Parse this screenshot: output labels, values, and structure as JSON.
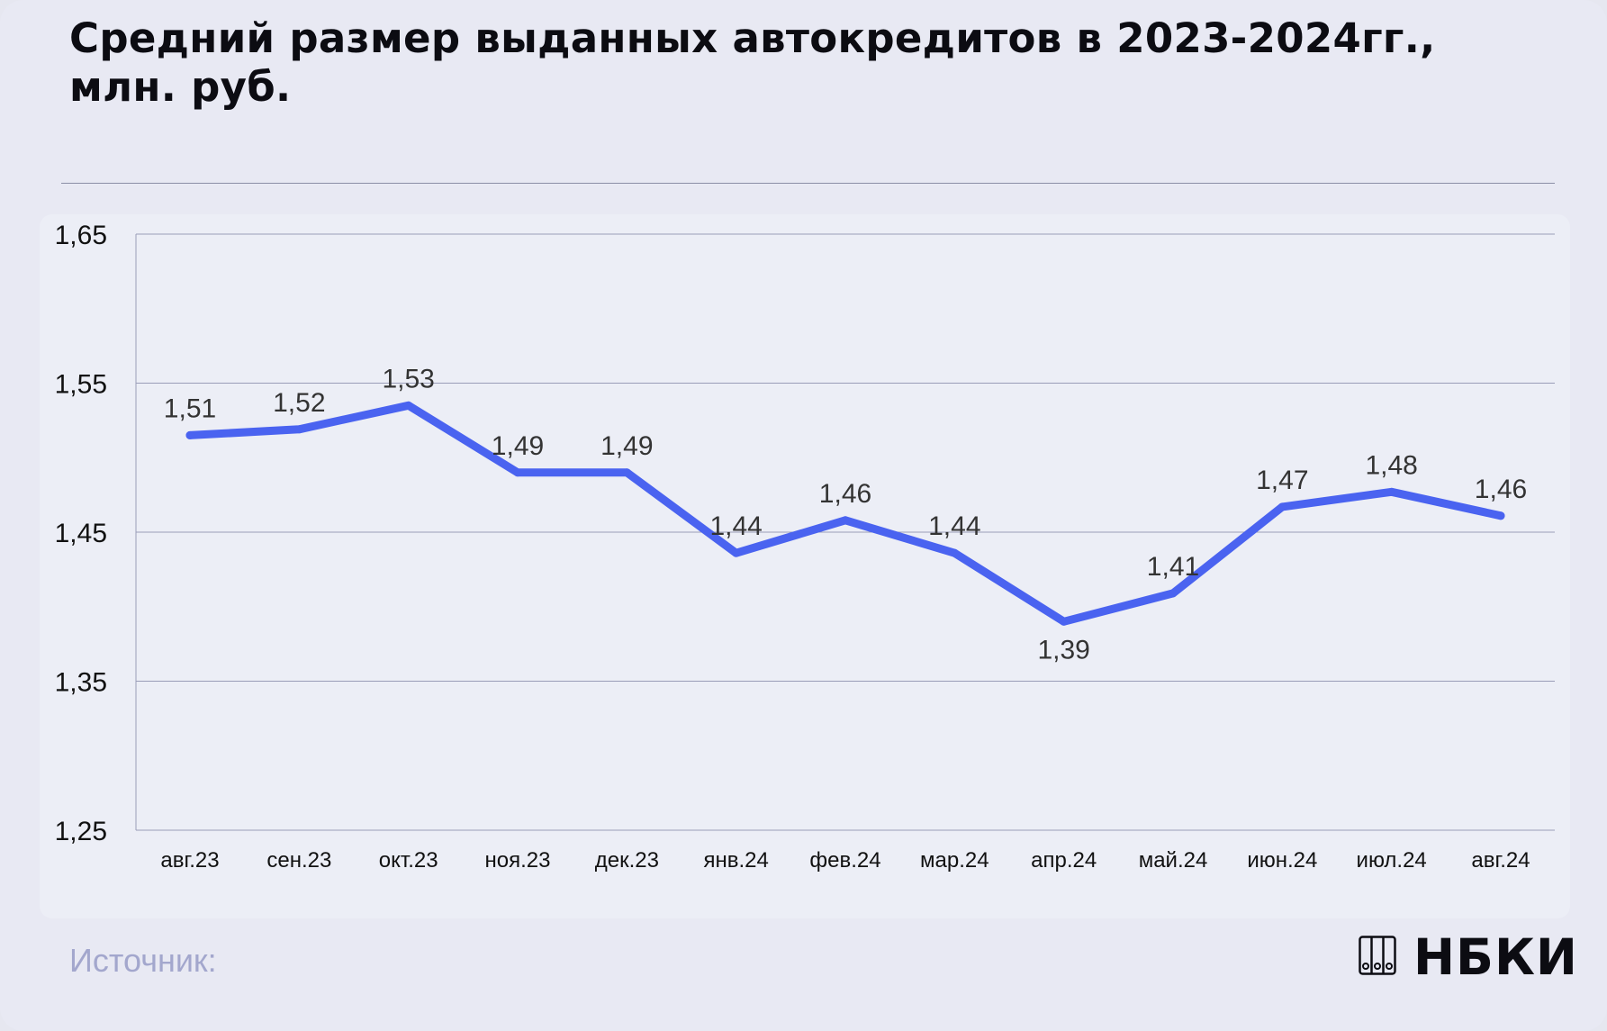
{
  "title": "Средний размер выданных автокредитов в 2023-2024гг., млн. руб.",
  "source_label": "Источник:",
  "logo_text": "НБКИ",
  "colors": {
    "line": "#4a63f0",
    "grid": "#9a9db8",
    "axis_text": "#111111",
    "label_text": "#333333",
    "source": "#a3a7cd"
  },
  "chart_data": {
    "type": "line",
    "categories": [
      "авг.23",
      "сен.23",
      "окт.23",
      "ноя.23",
      "дек.23",
      "янв.24",
      "фев.24",
      "мар.24",
      "апр.24",
      "май.24",
      "июн.24",
      "июл.24",
      "авг.24"
    ],
    "series": [
      {
        "values": [
          1.515,
          1.519,
          1.535,
          1.49,
          1.49,
          1.436,
          1.458,
          1.436,
          1.39,
          1.409,
          1.467,
          1.477,
          1.461
        ]
      }
    ],
    "data_labels": [
      "1,51",
      "1,52",
      "1,53",
      "1,49",
      "1,49",
      "1,44",
      "1,46",
      "1,44",
      "1,39",
      "1,41",
      "1,47",
      "1,48",
      "1,46"
    ],
    "yticks": [
      "1,25",
      "1,35",
      "1,45",
      "1,55",
      "1,65"
    ],
    "ytick_values": [
      1.25,
      1.35,
      1.45,
      1.55,
      1.65
    ],
    "ylim": [
      1.25,
      1.65
    ],
    "grid": true,
    "legend": false
  }
}
